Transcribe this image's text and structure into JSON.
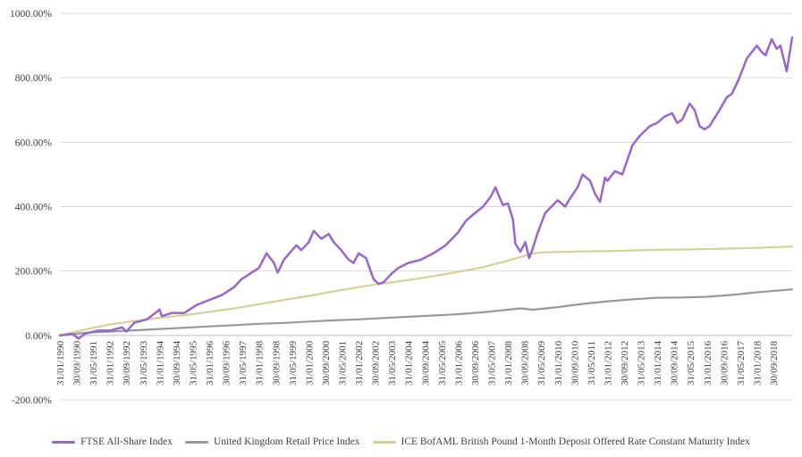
{
  "chart_data": {
    "type": "line",
    "title": "",
    "xlabel": "",
    "ylabel": "",
    "ylim": [
      -200,
      1000
    ],
    "y_ticks": [
      -200,
      0,
      200,
      400,
      600,
      800,
      1000
    ],
    "y_tick_labels": [
      "-200.00%",
      "0.00%",
      "200.00%",
      "400.00%",
      "600.00%",
      "800.00%",
      "1000.00%"
    ],
    "y_gridlines": true,
    "x_gridlines": false,
    "x_range": [
      1990.0,
      2019.42
    ],
    "x_tick_labels": [
      "31/01/1990",
      "30/09/1990",
      "31/05/1991",
      "31/01/1992",
      "30/09/1992",
      "31/05/1993",
      "31/01/1994",
      "30/09/1994",
      "31/05/1995",
      "31/01/1996",
      "30/09/1996",
      "31/05/1997",
      "31/01/1998",
      "30/09/1998",
      "31/05/1999",
      "31/01/2000",
      "30/09/2000",
      "31/05/2001",
      "31/01/2002",
      "30/09/2002",
      "31/05/2003",
      "31/01/2004",
      "30/09/2004",
      "31/05/2005",
      "31/01/2006",
      "30/09/2006",
      "31/05/2007",
      "31/01/2008",
      "30/09/2008",
      "31/05/2009",
      "31/01/2010",
      "30/09/2010",
      "31/05/2011",
      "31/01/2012",
      "30/09/2012",
      "31/05/2013",
      "31/01/2014",
      "30/09/2014",
      "31/05/2015",
      "31/01/2016",
      "30/09/2016",
      "31/05/2017",
      "31/01/2018",
      "30/09/2018"
    ],
    "legend_position": "bottom",
    "series": [
      {
        "name": "FTSE All-Share Index",
        "color": "#9966cc",
        "x": [
          1990.0,
          1990.5,
          1990.75,
          1991.0,
          1991.5,
          1992.0,
          1992.5,
          1992.67,
          1993.0,
          1993.5,
          1994.0,
          1994.1,
          1994.5,
          1995.0,
          1995.5,
          1996.0,
          1996.5,
          1997.0,
          1997.3,
          1997.6,
          1998.0,
          1998.3,
          1998.6,
          1998.75,
          1999.0,
          1999.5,
          1999.7,
          2000.0,
          2000.2,
          2000.5,
          2000.8,
          2001.0,
          2001.3,
          2001.6,
          2001.8,
          2002.0,
          2002.3,
          2002.6,
          2002.8,
          2003.0,
          2003.3,
          2003.6,
          2004.0,
          2004.5,
          2005.0,
          2005.5,
          2006.0,
          2006.3,
          2006.6,
          2007.0,
          2007.3,
          2007.5,
          2007.6,
          2007.8,
          2008.0,
          2008.2,
          2008.3,
          2008.5,
          2008.7,
          2008.85,
          2009.0,
          2009.2,
          2009.5,
          2010.0,
          2010.3,
          2010.45,
          2010.8,
          2011.0,
          2011.3,
          2011.5,
          2011.7,
          2011.9,
          2012.0,
          2012.3,
          2012.6,
          2013.0,
          2013.3,
          2013.7,
          2014.0,
          2014.3,
          2014.6,
          2014.8,
          2015.0,
          2015.3,
          2015.5,
          2015.7,
          2015.9,
          2016.1,
          2016.5,
          2016.8,
          2017.0,
          2017.3,
          2017.6,
          2018.0,
          2018.2,
          2018.35,
          2018.6,
          2018.8,
          2018.95,
          2019.2,
          2019.42
        ],
        "values": [
          0,
          5,
          -10,
          5,
          15,
          15,
          25,
          12,
          40,
          50,
          80,
          60,
          70,
          70,
          95,
          110,
          125,
          150,
          175,
          190,
          210,
          255,
          225,
          195,
          235,
          280,
          265,
          290,
          325,
          300,
          315,
          290,
          265,
          235,
          225,
          255,
          240,
          175,
          160,
          165,
          190,
          210,
          225,
          235,
          255,
          280,
          320,
          355,
          375,
          400,
          430,
          460,
          440,
          405,
          410,
          360,
          285,
          260,
          290,
          240,
          270,
          320,
          380,
          420,
          400,
          420,
          460,
          500,
          480,
          440,
          415,
          490,
          480,
          510,
          500,
          590,
          620,
          650,
          660,
          680,
          690,
          660,
          670,
          720,
          700,
          650,
          640,
          650,
          700,
          740,
          750,
          800,
          860,
          900,
          880,
          870,
          920,
          890,
          900,
          820,
          925
        ]
      },
      {
        "name": "United Kingdom Retail Price Index",
        "color": "#999999",
        "x": [
          1990.0,
          1991.0,
          1992.0,
          1993.0,
          1994.0,
          1995.0,
          1996.0,
          1997.0,
          1998.0,
          1999.0,
          2000.0,
          2001.0,
          2002.0,
          2003.0,
          2004.0,
          2005.0,
          2006.0,
          2007.0,
          2008.0,
          2008.5,
          2009.0,
          2010.0,
          2011.0,
          2012.0,
          2013.0,
          2014.0,
          2015.0,
          2016.0,
          2017.0,
          2018.0,
          2019.42
        ],
        "values": [
          0,
          8,
          12,
          16,
          20,
          24,
          28,
          32,
          36,
          39,
          43,
          47,
          50,
          54,
          58,
          62,
          66,
          72,
          80,
          84,
          80,
          88,
          98,
          106,
          112,
          117,
          118,
          120,
          126,
          134,
          143
        ]
      },
      {
        "name": "ICE BofAML British Pound 1-Month Deposit Offered Rate Constant Maturity Index",
        "color": "#d8cf96",
        "x": [
          1990.0,
          1991.0,
          1992.0,
          1993.0,
          1994.0,
          1995.0,
          1996.0,
          1997.0,
          1998.0,
          1999.0,
          2000.0,
          2001.0,
          2002.0,
          2003.0,
          2004.0,
          2005.0,
          2006.0,
          2007.0,
          2008.0,
          2008.8,
          2009.0,
          2009.5,
          2010.0,
          2011.0,
          2012.0,
          2013.0,
          2014.0,
          2015.0,
          2016.0,
          2017.0,
          2018.0,
          2019.42
        ],
        "values": [
          0,
          18,
          34,
          45,
          55,
          63,
          73,
          84,
          97,
          110,
          123,
          137,
          150,
          162,
          172,
          184,
          197,
          212,
          232,
          250,
          255,
          258,
          259,
          261,
          262,
          264,
          266,
          267,
          268,
          270,
          272,
          276
        ]
      }
    ]
  }
}
